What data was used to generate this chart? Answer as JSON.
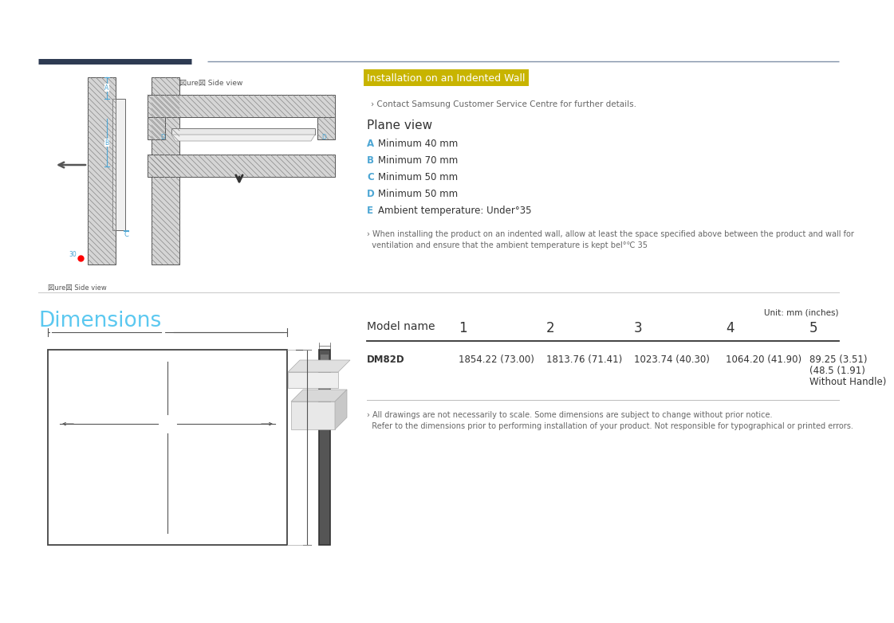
{
  "bg_color": "#ffffff",
  "title_installation": "Installation on an Indented Wall",
  "title_installation_color": "#ffffff",
  "title_installation_bg": "#c8b400",
  "subtitle_contact": "› Contact Samsung Customer Service Centre for further details.",
  "plane_view_title": "Plane view",
  "plane_items": [
    [
      "A",
      "Minimum 40 mm"
    ],
    [
      "B",
      "Minimum 70 mm"
    ],
    [
      "C",
      "Minimum 50 mm"
    ],
    [
      "D",
      "Minimum 50 mm"
    ],
    [
      "E",
      "Ambient temperature: Under°35"
    ]
  ],
  "plane_letter_color": "#4da6d4",
  "plane_note_line1": "› When installing the product on an indented wall, allow at least the space specified above between the product and wall for",
  "plane_note_line2": "  ventilation and ensure that the ambient temperature is kept bel°℃ 35",
  "side_view_label_top": "図ure図 Side view",
  "side_view_label_bot": "図ure図 Side view",
  "dim_title": "Dimensions",
  "dim_title_color": "#5bc8f0",
  "unit_label": "Unit: mm (inches)",
  "table_headers": [
    "Model name",
    "1",
    "2",
    "3",
    "4",
    "5"
  ],
  "table_model": "DM82D",
  "table_values": [
    "1854.22 (73.00)",
    "1813.76 (71.41)",
    "1023.74 (40.30)",
    "1064.20 (41.90)",
    "89.25 (3.51)\n(48.5 (1.91)\nWithout Handle)"
  ],
  "footnote1": "› All drawings are not necessarily to scale. Some dimensions are subject to change without prior notice.",
  "footnote2": "  Refer to the dimensions prior to performing installation of your product. Not responsible for typographical or printed errors.",
  "hatch_color": "#aaaaaa",
  "hatch_fill": "#cccccc",
  "line_dark": "#333333",
  "line_mid": "#555555",
  "line_light": "#999999",
  "text_dark": "#333333",
  "text_gray": "#666666",
  "top_bar_left_color": "#2d3a52",
  "top_bar_right_color": "#8090a8"
}
